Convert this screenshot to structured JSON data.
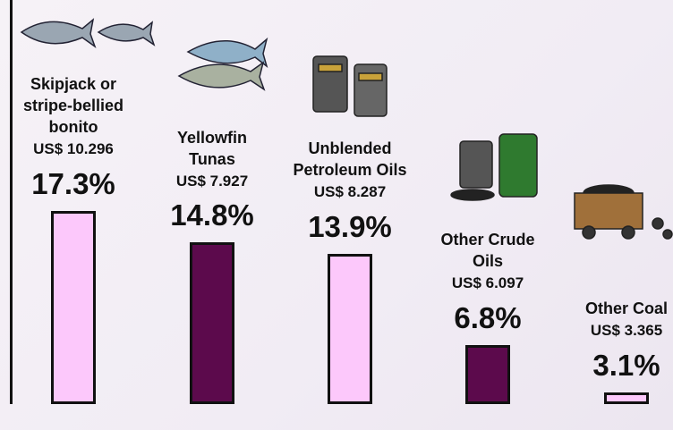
{
  "chart_data": {
    "type": "bar",
    "categories": [
      "Skipjack or stripe-bellied bonito",
      "Yellowfin Tunas",
      "Unblended Petroleum Oils",
      "Other Crude Oils",
      "Other Coal"
    ],
    "values": [
      17.3,
      14.8,
      13.9,
      6.8,
      3.1
    ],
    "value_labels": [
      "17.3%",
      "14.8%",
      "13.9%",
      "6.8%",
      "3.1%"
    ],
    "amounts": [
      "US$ 10.296",
      "US$ 7.927",
      "US$ 8.287",
      "US$ 6.097",
      "US$ 3.365"
    ],
    "colors": [
      "#fcc8fb",
      "#5c0a4c",
      "#fcc8fb",
      "#5c0a4c",
      "#fcc8fb"
    ],
    "ylim": [
      2.2,
      20
    ]
  }
}
